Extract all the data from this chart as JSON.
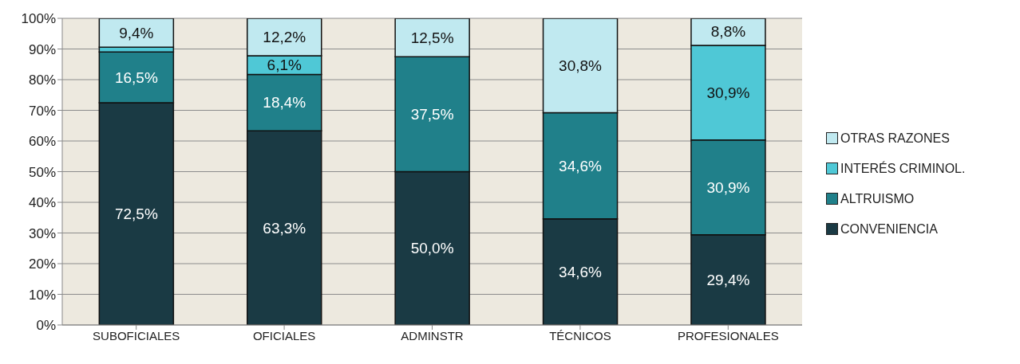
{
  "chart_data": {
    "type": "bar",
    "stacked": true,
    "categories": [
      "SUBOFICIALES",
      "OFICIALES",
      "ADMINSTR",
      "TÉCNICOS",
      "PROFESIONALES"
    ],
    "series": [
      {
        "name": "CONVENIENCIA",
        "color": "#1a3a44",
        "values": [
          72.5,
          63.3,
          50.0,
          34.6,
          29.4
        ],
        "value_labels": [
          "72,5%",
          "63,3%",
          "50,0%",
          "34,6%",
          "29,4%"
        ]
      },
      {
        "name": "ALTRUISMO",
        "color": "#20808a",
        "values": [
          16.5,
          18.4,
          37.5,
          34.6,
          30.9
        ],
        "value_labels": [
          "16,5%",
          "18,4%",
          "37,5%",
          "34,6%",
          "30,9%"
        ]
      },
      {
        "name": "INTERÉS CRIMINOL.",
        "color": "#4fc8d6",
        "values": [
          1.6,
          6.1,
          0,
          0,
          30.9
        ],
        "value_labels": [
          null,
          "6,1%",
          null,
          null,
          "30,9%"
        ]
      },
      {
        "name": "OTRAS RAZONES",
        "color": "#c0e9f0",
        "values": [
          9.4,
          12.2,
          12.5,
          30.8,
          8.8
        ],
        "value_labels": [
          "9,4%",
          "12,2%",
          "12,5%",
          "30,8%",
          "8,8%"
        ]
      }
    ],
    "ylim": [
      0,
      100
    ],
    "yticks": [
      {
        "value": 0,
        "label": "0%"
      },
      {
        "value": 10,
        "label": "10%"
      },
      {
        "value": 20,
        "label": "20%"
      },
      {
        "value": 30,
        "label": "30%"
      },
      {
        "value": 40,
        "label": "40%"
      },
      {
        "value": 50,
        "label": "50%"
      },
      {
        "value": 60,
        "label": "60%"
      },
      {
        "value": 70,
        "label": "70%"
      },
      {
        "value": 80,
        "label": "80%"
      },
      {
        "value": 90,
        "label": "90%"
      },
      {
        "value": 100,
        "label": "100%"
      }
    ],
    "grid": "y",
    "legend": "right"
  }
}
